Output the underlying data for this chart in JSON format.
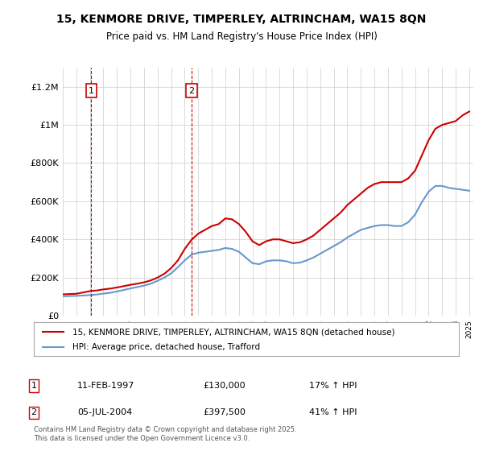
{
  "title": "15, KENMORE DRIVE, TIMPERLEY, ALTRINCHAM, WA15 8QN",
  "subtitle": "Price paid vs. HM Land Registry's House Price Index (HPI)",
  "legend_line1": "15, KENMORE DRIVE, TIMPERLEY, ALTRINCHAM, WA15 8QN (detached house)",
  "legend_line2": "HPI: Average price, detached house, Trafford",
  "transaction1_label": "1",
  "transaction1_date": "11-FEB-1997",
  "transaction1_price": "£130,000",
  "transaction1_hpi": "17% ↑ HPI",
  "transaction2_label": "2",
  "transaction2_date": "05-JUL-2004",
  "transaction2_price": "£397,500",
  "transaction2_hpi": "41% ↑ HPI",
  "copyright": "Contains HM Land Registry data © Crown copyright and database right 2025.\nThis data is licensed under the Open Government Licence v3.0.",
  "property_color": "#cc0000",
  "hpi_color": "#6699cc",
  "transaction_marker_color": "#cc0000",
  "background_color": "#ffffff",
  "grid_color": "#cccccc",
  "ylim": [
    0,
    1300000
  ],
  "yticks": [
    0,
    200000,
    400000,
    600000,
    800000,
    1000000,
    1200000
  ],
  "ylabel_texts": [
    "£0",
    "£200K",
    "£400K",
    "£600K",
    "£800K",
    "£1M",
    "£1.2M"
  ],
  "x_start_year": 1995,
  "x_end_year": 2025,
  "transaction1_x": 1997.1,
  "transaction2_x": 2004.5,
  "property_line": {
    "x": [
      1995.0,
      1996.0,
      1997.1,
      1997.5,
      1998.0,
      1998.5,
      1999.0,
      1999.5,
      2000.0,
      2000.5,
      2001.0,
      2001.5,
      2002.0,
      2002.5,
      2003.0,
      2003.5,
      2004.0,
      2004.5,
      2005.0,
      2005.5,
      2006.0,
      2006.5,
      2007.0,
      2007.5,
      2008.0,
      2008.5,
      2009.0,
      2009.5,
      2010.0,
      2010.5,
      2011.0,
      2011.5,
      2012.0,
      2012.5,
      2013.0,
      2013.5,
      2014.0,
      2014.5,
      2015.0,
      2015.5,
      2016.0,
      2016.5,
      2017.0,
      2017.5,
      2018.0,
      2018.5,
      2019.0,
      2019.5,
      2020.0,
      2020.5,
      2021.0,
      2021.5,
      2022.0,
      2022.5,
      2023.0,
      2023.5,
      2024.0,
      2024.5,
      2025.0
    ],
    "y": [
      112000,
      115000,
      130000,
      132000,
      138000,
      142000,
      148000,
      155000,
      162000,
      168000,
      175000,
      185000,
      200000,
      220000,
      250000,
      290000,
      350000,
      397500,
      430000,
      450000,
      470000,
      480000,
      510000,
      505000,
      480000,
      440000,
      390000,
      370000,
      390000,
      400000,
      400000,
      390000,
      380000,
      385000,
      400000,
      420000,
      450000,
      480000,
      510000,
      540000,
      580000,
      610000,
      640000,
      670000,
      690000,
      700000,
      700000,
      700000,
      700000,
      720000,
      760000,
      840000,
      920000,
      980000,
      1000000,
      1010000,
      1020000,
      1050000,
      1070000
    ]
  },
  "hpi_line": {
    "x": [
      1995.0,
      1996.0,
      1997.0,
      1997.5,
      1998.0,
      1998.5,
      1999.0,
      1999.5,
      2000.0,
      2000.5,
      2001.0,
      2001.5,
      2002.0,
      2002.5,
      2003.0,
      2003.5,
      2004.0,
      2004.5,
      2005.0,
      2005.5,
      2006.0,
      2006.5,
      2007.0,
      2007.5,
      2008.0,
      2008.5,
      2009.0,
      2009.5,
      2010.0,
      2010.5,
      2011.0,
      2011.5,
      2012.0,
      2012.5,
      2013.0,
      2013.5,
      2014.0,
      2014.5,
      2015.0,
      2015.5,
      2016.0,
      2016.5,
      2017.0,
      2017.5,
      2018.0,
      2018.5,
      2019.0,
      2019.5,
      2020.0,
      2020.5,
      2021.0,
      2021.5,
      2022.0,
      2022.5,
      2023.0,
      2023.5,
      2024.0,
      2024.5,
      2025.0
    ],
    "y": [
      102000,
      104000,
      108000,
      111000,
      116000,
      120000,
      127000,
      135000,
      143000,
      150000,
      158000,
      168000,
      183000,
      200000,
      222000,
      255000,
      290000,
      320000,
      330000,
      335000,
      340000,
      345000,
      355000,
      350000,
      335000,
      305000,
      275000,
      270000,
      285000,
      290000,
      290000,
      285000,
      275000,
      278000,
      290000,
      305000,
      325000,
      345000,
      365000,
      385000,
      410000,
      430000,
      450000,
      460000,
      470000,
      475000,
      475000,
      470000,
      470000,
      490000,
      530000,
      595000,
      650000,
      680000,
      680000,
      670000,
      665000,
      660000,
      655000
    ]
  }
}
